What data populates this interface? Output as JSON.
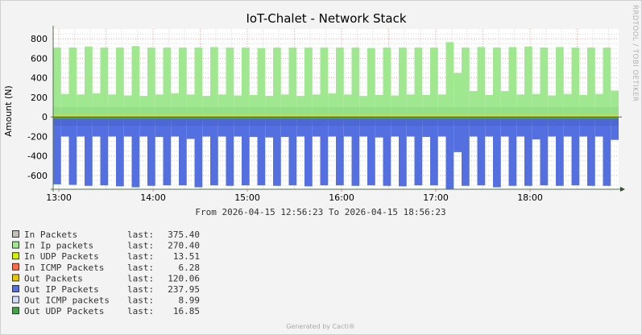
{
  "chart_data": {
    "type": "area",
    "title": "IoT-Chalet - Network Stack",
    "ylabel": "Amount (N)",
    "xlabel": "",
    "watermark": "RRDTOOL / TOBI OETIKER",
    "period": "From 2026-04-15 12:56:23 To 2026-04-15 18:56:23",
    "footer": "Generated by Cacti®",
    "ylim": [
      -740,
      900
    ],
    "yticks": [
      800,
      600,
      400,
      200,
      0,
      -200,
      -400,
      -600
    ],
    "xticks": [
      "13:00",
      "14:00",
      "15:00",
      "16:00",
      "17:00",
      "18:00"
    ],
    "x_start": "12:56:23",
    "x_end": "18:56:23",
    "sample_minutes": 5,
    "grid": true,
    "legend_placement": "bottom-left",
    "in_ip_packets": [
      710,
      235,
      710,
      230,
      720,
      240,
      710,
      230,
      710,
      220,
      725,
      215,
      710,
      230,
      710,
      240,
      710,
      230,
      710,
      215,
      715,
      230,
      710,
      220,
      710,
      225,
      705,
      215,
      710,
      230,
      710,
      215,
      710,
      230,
      710,
      240,
      710,
      230,
      710,
      215,
      705,
      225,
      710,
      220,
      710,
      230,
      710,
      225,
      710,
      230,
      765,
      450,
      710,
      265,
      715,
      225,
      710,
      265,
      715,
      230,
      720,
      235,
      710,
      220,
      715,
      235,
      710,
      225,
      710,
      235,
      710,
      270
    ],
    "out_ip_packets": [
      -690,
      -200,
      -695,
      -200,
      -705,
      -200,
      -700,
      -200,
      -710,
      -200,
      -720,
      -200,
      -705,
      -205,
      -700,
      -200,
      -700,
      -225,
      -720,
      -200,
      -700,
      -200,
      -705,
      -200,
      -700,
      -205,
      -700,
      -210,
      -705,
      -205,
      -700,
      -200,
      -710,
      -200,
      -700,
      -200,
      -700,
      -200,
      -705,
      -200,
      -700,
      -210,
      -705,
      -200,
      -710,
      -200,
      -700,
      -205,
      -700,
      -200,
      -740,
      -360,
      -705,
      -200,
      -700,
      -200,
      -720,
      -200,
      -705,
      -200,
      -705,
      -230,
      -700,
      -200,
      -705,
      -200,
      -700,
      -200,
      -705,
      -200,
      -705,
      -235
    ],
    "legend": [
      {
        "name": "In Packets",
        "color": "#c0c0b8",
        "last_label": "last:",
        "last": "375.40"
      },
      {
        "name": "In Ip packets",
        "color": "#a0e890",
        "last_label": "last:",
        "last": "270.40"
      },
      {
        "name": "In UDP Packets",
        "color": "#d4f000",
        "last_label": "last:",
        "last": "13.51"
      },
      {
        "name": "In ICMP Packets",
        "color": "#ff6a4a",
        "last_label": "last:",
        "last": "6.28"
      },
      {
        "name": "Out Packets",
        "color": "#e8c800",
        "last_label": "last:",
        "last": "120.06"
      },
      {
        "name": "Out IP Packets",
        "color": "#5470e0",
        "last_label": "last:",
        "last": "237.95"
      },
      {
        "name": "Out ICMP packets",
        "color": "#d0dcf8",
        "last_label": "last:",
        "last": "8.99"
      },
      {
        "name": "Out UDP Packets",
        "color": "#48a048",
        "last_label": "last:",
        "last": "16.85"
      }
    ]
  }
}
